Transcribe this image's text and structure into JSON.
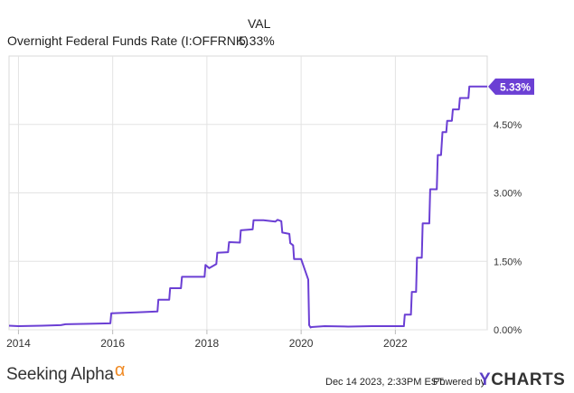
{
  "header": {
    "column_label": "VAL",
    "series_name": "Overnight Federal Funds Rate (I:OFFRNK)",
    "series_value": "5.33%"
  },
  "chart_data": {
    "type": "line",
    "title": "",
    "xlabel": "",
    "ylabel": "",
    "x_ticks": [
      "2014",
      "2016",
      "2018",
      "2020",
      "2022"
    ],
    "y_ticks": [
      "0.00%",
      "1.50%",
      "3.00%",
      "4.50%"
    ],
    "ylim": [
      0,
      6
    ],
    "xlim": [
      2013.8,
      2023.95
    ],
    "grid": true,
    "last_value_label": "5.33%",
    "line_color": "#6b3fd4",
    "series": [
      {
        "name": "Overnight Federal Funds Rate (I:OFFRNK)",
        "x": [
          2013.8,
          2014.0,
          2014.5,
          2014.9,
          2015.0,
          2015.5,
          2015.95,
          2015.97,
          2016.5,
          2016.95,
          2016.97,
          2017.2,
          2017.22,
          2017.45,
          2017.47,
          2017.95,
          2017.97,
          2018.05,
          2018.2,
          2018.22,
          2018.45,
          2018.47,
          2018.7,
          2018.72,
          2018.97,
          2018.99,
          2019.2,
          2019.45,
          2019.5,
          2019.58,
          2019.6,
          2019.75,
          2019.77,
          2019.83,
          2019.85,
          2020.0,
          2020.15,
          2020.17,
          2020.2,
          2020.22,
          2020.5,
          2021.0,
          2021.5,
          2021.8,
          2022.0,
          2022.18,
          2022.2,
          2022.33,
          2022.35,
          2022.44,
          2022.46,
          2022.56,
          2022.58,
          2022.72,
          2022.74,
          2022.88,
          2022.9,
          2022.97,
          2023.0,
          2023.08,
          2023.1,
          2023.2,
          2023.22,
          2023.35,
          2023.37,
          2023.55,
          2023.57,
          2023.95
        ],
        "values": [
          0.09,
          0.08,
          0.09,
          0.1,
          0.12,
          0.13,
          0.14,
          0.36,
          0.38,
          0.4,
          0.66,
          0.66,
          0.91,
          0.91,
          1.16,
          1.16,
          1.42,
          1.35,
          1.44,
          1.69,
          1.7,
          1.92,
          1.91,
          2.18,
          2.2,
          2.4,
          2.4,
          2.37,
          2.41,
          2.38,
          2.13,
          2.1,
          1.9,
          1.85,
          1.55,
          1.55,
          1.1,
          0.1,
          0.05,
          0.06,
          0.08,
          0.07,
          0.08,
          0.08,
          0.08,
          0.08,
          0.33,
          0.33,
          0.83,
          0.83,
          1.58,
          1.58,
          2.33,
          2.33,
          3.08,
          3.08,
          3.83,
          3.83,
          4.33,
          4.33,
          4.58,
          4.58,
          4.83,
          4.83,
          5.08,
          5.08,
          5.33,
          5.33
        ]
      }
    ]
  },
  "footer": {
    "brand": "Seeking Alpha",
    "brand_mark": "α",
    "timestamp": "Dec 14 2023, 2:33PM EST.",
    "powered_by": "Powered by",
    "ycharts_y": "Y",
    "ycharts_rest": "CHARTS"
  }
}
